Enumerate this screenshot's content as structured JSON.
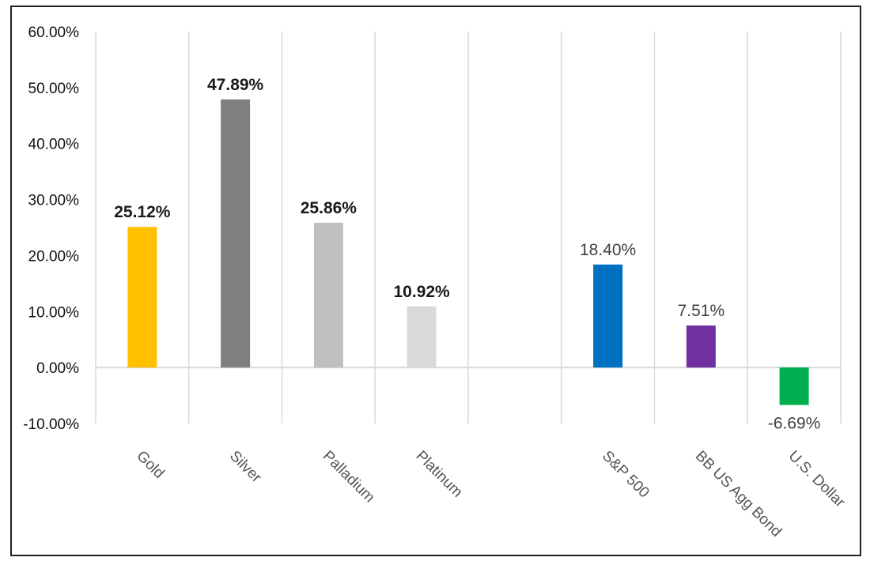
{
  "chart_data": {
    "type": "bar",
    "title": "",
    "xlabel": "",
    "ylabel": "",
    "ylim": [
      -10,
      60
    ],
    "ytick_step": 10,
    "yticks": [
      "60.00%",
      "50.00%",
      "40.00%",
      "30.00%",
      "20.00%",
      "10.00%",
      "0.00%",
      "-10.00%"
    ],
    "grid": "vertical category separators",
    "legend": "none",
    "categories": [
      "Gold",
      "Silver",
      "Palladium",
      "Platinum",
      "",
      "S&P 500",
      "BB US Agg Bond",
      "U.S. Dollar"
    ],
    "values": [
      25.12,
      47.89,
      25.86,
      10.92,
      null,
      18.4,
      7.51,
      -6.69
    ],
    "data_labels": [
      "25.12%",
      "47.89%",
      "25.86%",
      "10.92%",
      "",
      "18.40%",
      "7.51%",
      "-6.69%"
    ],
    "label_bold": [
      true,
      true,
      true,
      true,
      false,
      false,
      false,
      false
    ],
    "colors": [
      "#FFC000",
      "#7F7F7F",
      "#BFBFBF",
      "#D9D9D9",
      "",
      "#0070C0",
      "#7030A0",
      "#00B050"
    ]
  }
}
